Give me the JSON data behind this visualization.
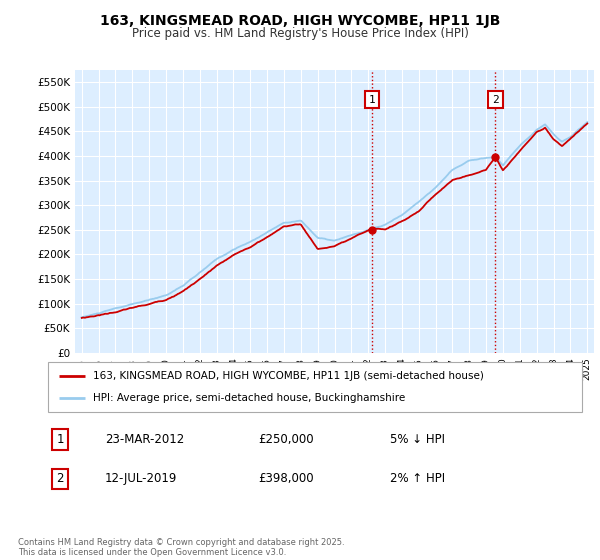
{
  "title": "163, KINGSMEAD ROAD, HIGH WYCOMBE, HP11 1JB",
  "subtitle": "Price paid vs. HM Land Registry's House Price Index (HPI)",
  "legend_line1": "163, KINGSMEAD ROAD, HIGH WYCOMBE, HP11 1JB (semi-detached house)",
  "legend_line2": "HPI: Average price, semi-detached house, Buckinghamshire",
  "transaction1_date": "23-MAR-2012",
  "transaction1_price": "£250,000",
  "transaction1_hpi": "5% ↓ HPI",
  "transaction2_date": "12-JUL-2019",
  "transaction2_price": "£398,000",
  "transaction2_hpi": "2% ↑ HPI",
  "footer": "Contains HM Land Registry data © Crown copyright and database right 2025.\nThis data is licensed under the Open Government Licence v3.0.",
  "ylim": [
    0,
    575000
  ],
  "yticks": [
    0,
    50000,
    100000,
    150000,
    200000,
    250000,
    300000,
    350000,
    400000,
    450000,
    500000,
    550000
  ],
  "plot_bg": "#ddeeff",
  "grid_color": "#ffffff",
  "hpi_color": "#99ccee",
  "price_color": "#cc0000",
  "marker1_date_num": 2012.23,
  "marker2_date_num": 2019.54,
  "marker1_price": 250000,
  "marker2_price": 398000,
  "hpi_key_x": [
    1995.0,
    1996.0,
    1997.0,
    1998.0,
    1999.0,
    2000.0,
    2001.0,
    2002.0,
    2003.0,
    2004.0,
    2005.0,
    2006.0,
    2007.0,
    2008.0,
    2009.0,
    2010.0,
    2011.0,
    2012.0,
    2013.0,
    2014.0,
    2015.0,
    2016.0,
    2017.0,
    2018.0,
    2019.0,
    2019.54,
    2020.0,
    2021.0,
    2022.0,
    2022.5,
    2023.0,
    2023.5,
    2024.0,
    2024.5,
    2025.0
  ],
  "hpi_key_y": [
    75000,
    83000,
    92000,
    100000,
    108000,
    118000,
    138000,
    163000,
    190000,
    210000,
    225000,
    245000,
    265000,
    270000,
    235000,
    228000,
    238000,
    248000,
    258000,
    278000,
    305000,
    335000,
    370000,
    390000,
    395000,
    398000,
    380000,
    420000,
    455000,
    465000,
    445000,
    430000,
    440000,
    455000,
    470000
  ],
  "price_key_x": [
    1995.0,
    1996.0,
    1997.0,
    1998.0,
    1999.0,
    2000.0,
    2001.0,
    2002.0,
    2003.0,
    2004.0,
    2005.0,
    2006.0,
    2007.0,
    2008.0,
    2009.0,
    2010.0,
    2011.0,
    2012.23,
    2013.0,
    2014.0,
    2015.0,
    2016.0,
    2017.0,
    2018.0,
    2019.0,
    2019.54,
    2020.0,
    2021.0,
    2022.0,
    2022.5,
    2023.0,
    2023.5,
    2024.0,
    2024.5,
    2025.0
  ],
  "price_key_y": [
    72000,
    78000,
    85000,
    93000,
    100000,
    110000,
    128000,
    152000,
    178000,
    198000,
    215000,
    235000,
    258000,
    262000,
    212000,
    218000,
    230000,
    250000,
    248000,
    265000,
    285000,
    320000,
    350000,
    360000,
    372000,
    398000,
    370000,
    410000,
    448000,
    458000,
    435000,
    420000,
    435000,
    450000,
    465000
  ]
}
